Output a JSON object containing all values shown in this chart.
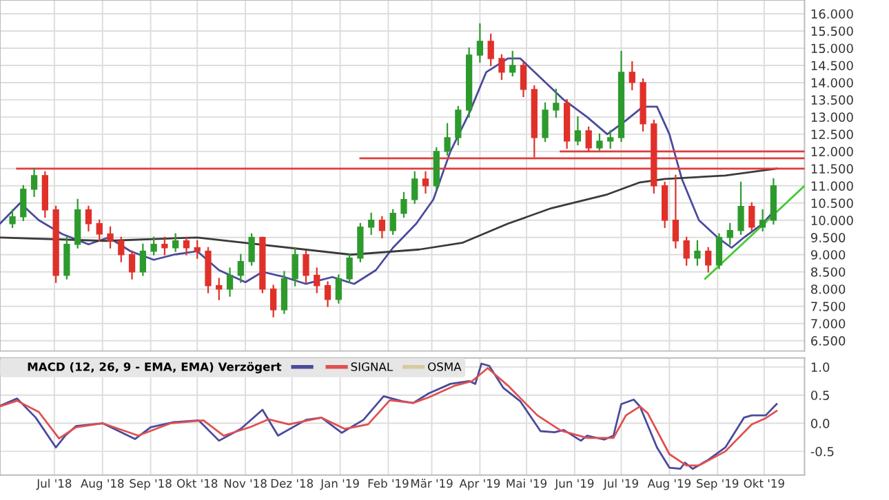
{
  "chart_data": [
    {
      "type": "candlestick",
      "tick_labels": "y",
      "grid": true,
      "xlim": [
        "2018-05-27",
        "2019-10-27"
      ],
      "xticks": [
        {
          "value": "2018-07-01",
          "label": null
        },
        {
          "value": "2018-08-01",
          "label": null
        },
        {
          "value": "2018-09-01",
          "label": null
        },
        {
          "value": "2018-10-01",
          "label": null
        },
        {
          "value": "2018-11-01",
          "label": null
        },
        {
          "value": "2018-12-01",
          "label": null
        },
        {
          "value": "2019-01-01",
          "label": null
        },
        {
          "value": "2019-02-01",
          "label": null
        },
        {
          "value": "2019-03-01",
          "label": null
        },
        {
          "value": "2019-04-01",
          "label": null
        },
        {
          "value": "2019-05-01",
          "label": null
        },
        {
          "value": "2019-06-01",
          "label": null
        },
        {
          "value": "2019-07-01",
          "label": null
        },
        {
          "value": "2019-08-01",
          "label": null
        },
        {
          "value": "2019-09-01",
          "label": null
        },
        {
          "value": "2019-10-01",
          "label": null
        }
      ],
      "ylim": [
        6.2,
        16.4
      ],
      "yticks": [
        {
          "value": 6.5,
          "label": "6.500"
        },
        {
          "value": 7,
          "label": "7.000"
        },
        {
          "value": 7.5,
          "label": "7.500"
        },
        {
          "value": 8,
          "label": "8.000"
        },
        {
          "value": 8.5,
          "label": "8.500"
        },
        {
          "value": 9,
          "label": "9.000"
        },
        {
          "value": 9.5,
          "label": "9.500"
        },
        {
          "value": 10,
          "label": "10.000"
        },
        {
          "value": 10.5,
          "label": "10.500"
        },
        {
          "value": 11,
          "label": "11.000"
        },
        {
          "value": 11.5,
          "label": "11.500"
        },
        {
          "value": 12,
          "label": "12.000"
        },
        {
          "value": 12.5,
          "label": "12.500"
        },
        {
          "value": 13,
          "label": "13.000"
        },
        {
          "value": 13.5,
          "label": "13.500"
        },
        {
          "value": 14,
          "label": "14.000"
        },
        {
          "value": 14.5,
          "label": "14.500"
        },
        {
          "value": 15,
          "label": "15.000"
        },
        {
          "value": 15.5,
          "label": "15.500"
        },
        {
          "value": 16,
          "label": "16.000"
        }
      ],
      "x": [
        "2018-06-04",
        "2018-06-11",
        "2018-06-18",
        "2018-06-25",
        "2018-07-02",
        "2018-07-09",
        "2018-07-16",
        "2018-07-23",
        "2018-07-30",
        "2018-08-06",
        "2018-08-13",
        "2018-08-20",
        "2018-08-27",
        "2018-09-03",
        "2018-09-10",
        "2018-09-17",
        "2018-09-24",
        "2018-10-01",
        "2018-10-08",
        "2018-10-15",
        "2018-10-22",
        "2018-10-29",
        "2018-11-05",
        "2018-11-12",
        "2018-11-19",
        "2018-11-26",
        "2018-12-03",
        "2018-12-10",
        "2018-12-17",
        "2018-12-24",
        "2018-12-31",
        "2019-01-07",
        "2019-01-14",
        "2019-01-21",
        "2019-01-28",
        "2019-02-04",
        "2019-02-11",
        "2019-02-18",
        "2019-02-25",
        "2019-03-04",
        "2019-03-11",
        "2019-03-18",
        "2019-03-25",
        "2019-04-01",
        "2019-04-08",
        "2019-04-15",
        "2019-04-22",
        "2019-04-29",
        "2019-05-06",
        "2019-05-13",
        "2019-05-20",
        "2019-05-27",
        "2019-06-03",
        "2019-06-10",
        "2019-06-17",
        "2019-06-24",
        "2019-07-01",
        "2019-07-08",
        "2019-07-15",
        "2019-07-22",
        "2019-07-29",
        "2019-08-05",
        "2019-08-12",
        "2019-08-19",
        "2019-08-26",
        "2019-09-02",
        "2019-09-09",
        "2019-09-16",
        "2019-09-23",
        "2019-09-30",
        "2019-10-07"
      ],
      "ohlc": [
        [
          9.9,
          10.3,
          9.8,
          10.1
        ],
        [
          10.1,
          11.0,
          10.0,
          10.9
        ],
        [
          10.9,
          11.5,
          10.7,
          11.3
        ],
        [
          11.3,
          11.4,
          10.1,
          10.3
        ],
        [
          10.3,
          10.4,
          8.2,
          8.4
        ],
        [
          8.4,
          9.5,
          8.3,
          9.3
        ],
        [
          9.3,
          10.6,
          9.2,
          10.3
        ],
        [
          10.3,
          10.4,
          9.7,
          9.9
        ],
        [
          9.9,
          10.0,
          9.4,
          9.6
        ],
        [
          9.6,
          9.8,
          9.2,
          9.4
        ],
        [
          9.4,
          9.5,
          8.8,
          9.0
        ],
        [
          9.0,
          9.1,
          8.3,
          8.5
        ],
        [
          8.5,
          9.3,
          8.4,
          9.1
        ],
        [
          9.1,
          9.5,
          9.0,
          9.3
        ],
        [
          9.3,
          9.5,
          9.0,
          9.2
        ],
        [
          9.2,
          9.6,
          9.1,
          9.4
        ],
        [
          9.4,
          9.5,
          9.0,
          9.2
        ],
        [
          9.2,
          9.4,
          8.9,
          9.1
        ],
        [
          9.1,
          9.2,
          7.9,
          8.1
        ],
        [
          8.1,
          8.3,
          7.7,
          8.0
        ],
        [
          8.0,
          8.6,
          7.8,
          8.4
        ],
        [
          8.4,
          9.0,
          8.2,
          8.8
        ],
        [
          8.8,
          9.6,
          8.7,
          9.5
        ],
        [
          9.5,
          9.5,
          7.9,
          8.0
        ],
        [
          8.0,
          8.1,
          7.2,
          7.4
        ],
        [
          7.4,
          8.5,
          7.3,
          8.3
        ],
        [
          8.3,
          9.2,
          8.1,
          9.0
        ],
        [
          9.0,
          9.1,
          8.2,
          8.4
        ],
        [
          8.4,
          8.6,
          7.9,
          8.1
        ],
        [
          8.1,
          8.2,
          7.5,
          7.7
        ],
        [
          7.7,
          8.4,
          7.6,
          8.3
        ],
        [
          8.3,
          9.0,
          8.2,
          8.9
        ],
        [
          8.9,
          9.9,
          8.8,
          9.8
        ],
        [
          9.8,
          10.2,
          9.6,
          10.0
        ],
        [
          10.0,
          10.1,
          9.5,
          9.7
        ],
        [
          9.7,
          10.3,
          9.6,
          10.2
        ],
        [
          10.2,
          10.8,
          10.1,
          10.6
        ],
        [
          10.6,
          11.4,
          10.5,
          11.2
        ],
        [
          11.2,
          11.4,
          10.8,
          11.0
        ],
        [
          11.0,
          12.1,
          10.9,
          12.0
        ],
        [
          12.0,
          12.8,
          11.9,
          12.4
        ],
        [
          12.4,
          13.3,
          12.2,
          13.2
        ],
        [
          13.2,
          15.0,
          13.0,
          14.8
        ],
        [
          14.8,
          15.7,
          14.6,
          15.2
        ],
        [
          15.2,
          15.4,
          14.5,
          14.7
        ],
        [
          14.7,
          14.8,
          14.1,
          14.3
        ],
        [
          14.3,
          14.9,
          14.2,
          14.5
        ],
        [
          14.5,
          14.6,
          13.6,
          13.8
        ],
        [
          13.8,
          13.9,
          11.85,
          12.4
        ],
        [
          12.4,
          13.4,
          12.3,
          13.2
        ],
        [
          13.2,
          13.8,
          13.0,
          13.4
        ],
        [
          13.4,
          13.5,
          12.1,
          12.3
        ],
        [
          12.3,
          13.0,
          12.2,
          12.6
        ],
        [
          12.6,
          12.7,
          12.0,
          12.1
        ],
        [
          12.1,
          12.5,
          12.05,
          12.3
        ],
        [
          12.3,
          12.6,
          12.1,
          12.4
        ],
        [
          12.4,
          14.9,
          12.3,
          14.3
        ],
        [
          14.3,
          14.6,
          13.8,
          14.0
        ],
        [
          14.0,
          14.1,
          12.6,
          12.8
        ],
        [
          12.8,
          12.9,
          10.8,
          11.0
        ],
        [
          11.0,
          11.1,
          9.8,
          10.0
        ],
        [
          10.0,
          11.3,
          9.2,
          9.4
        ],
        [
          9.4,
          9.5,
          8.7,
          8.9
        ],
        [
          8.9,
          9.4,
          8.7,
          9.1
        ],
        [
          9.1,
          9.2,
          8.5,
          8.7
        ],
        [
          8.7,
          9.6,
          8.6,
          9.5
        ],
        [
          9.5,
          9.9,
          9.3,
          9.7
        ],
        [
          9.7,
          11.1,
          9.6,
          10.4
        ],
        [
          10.4,
          10.5,
          9.7,
          9.8
        ],
        [
          9.8,
          10.3,
          9.7,
          10.0
        ],
        [
          10.0,
          11.2,
          9.9,
          11.0
        ]
      ],
      "series": [
        {
          "type": "line",
          "color": "#4a4a9c",
          "x": [
            "2018-05-27",
            "2018-06-09",
            "2018-06-21",
            "2018-07-06",
            "2018-07-23",
            "2018-08-05",
            "2018-08-19",
            "2018-09-03",
            "2018-09-16",
            "2018-10-01",
            "2018-10-15",
            "2018-11-01",
            "2018-11-12",
            "2018-11-26",
            "2018-12-10",
            "2018-12-27",
            "2019-01-10",
            "2019-01-24",
            "2019-02-04",
            "2019-02-19",
            "2019-03-02",
            "2019-03-13",
            "2019-03-25",
            "2019-04-05",
            "2019-04-19",
            "2019-04-27",
            "2019-05-11",
            "2019-05-25",
            "2019-06-09",
            "2019-06-22",
            "2019-07-04",
            "2019-07-15",
            "2019-07-24",
            "2019-08-01",
            "2019-08-09",
            "2019-08-20",
            "2019-09-01",
            "2019-09-10",
            "2019-09-18",
            "2019-09-30",
            "2019-10-08"
          ],
          "values": [
            9.9,
            10.5,
            10.0,
            9.6,
            9.3,
            9.5,
            9.1,
            8.85,
            9.0,
            9.1,
            8.55,
            8.2,
            8.5,
            8.35,
            8.15,
            8.35,
            8.15,
            8.55,
            9.2,
            9.9,
            10.6,
            12.0,
            13.1,
            14.3,
            14.7,
            14.7,
            14.1,
            13.5,
            13.0,
            12.5,
            12.9,
            13.3,
            13.3,
            12.5,
            11.2,
            10.0,
            9.5,
            9.2,
            9.5,
            9.9,
            10.3
          ]
        },
        {
          "type": "line",
          "color": "#3a3a3a",
          "x": [
            "2018-05-27",
            "2018-08-03",
            "2018-10-01",
            "2019-01-08",
            "2019-02-21",
            "2019-03-21",
            "2019-04-19",
            "2019-05-17",
            "2019-06-22",
            "2019-07-13",
            "2019-07-29",
            "2019-09-06",
            "2019-10-09"
          ],
          "values": [
            9.5,
            9.4,
            9.5,
            9.0,
            9.15,
            9.35,
            9.9,
            10.35,
            10.75,
            11.1,
            11.2,
            11.3,
            11.5
          ]
        },
        {
          "type": "line",
          "color": "#e03c3c",
          "x": [
            "2018-06-07",
            "2019-10-27"
          ],
          "values": [
            11.5,
            11.5
          ]
        },
        {
          "type": "line",
          "color": "#e03c3c",
          "x": [
            "2019-01-14",
            "2019-10-27"
          ],
          "values": [
            11.8,
            11.8
          ]
        },
        {
          "type": "line",
          "color": "#e03c3c",
          "x": [
            "2019-05-23",
            "2019-10-27"
          ],
          "values": [
            12.0,
            12.0
          ]
        },
        {
          "type": "line",
          "color": "#44cc33",
          "x": [
            "2019-08-24",
            "2019-10-27"
          ],
          "values": [
            8.3,
            11.0
          ]
        }
      ]
    },
    {
      "type": "line",
      "grid": true,
      "legend": "top left",
      "legend_title": "MACD (12, 26, 9 - EMA, EMA) Verzögert",
      "xlim": [
        "2018-05-27",
        "2019-10-27"
      ],
      "xticks": [
        {
          "value": "2018-07-01",
          "label": "Jul '18"
        },
        {
          "value": "2018-08-01",
          "label": "Aug '18"
        },
        {
          "value": "2018-09-01",
          "label": "Sep '18"
        },
        {
          "value": "2018-10-01",
          "label": "Okt '18"
        },
        {
          "value": "2018-11-01",
          "label": "Nov '18"
        },
        {
          "value": "2018-12-01",
          "label": "Dez '18"
        },
        {
          "value": "2019-01-01",
          "label": "Jan '19"
        },
        {
          "value": "2019-02-01",
          "label": "Feb '19"
        },
        {
          "value": "2019-03-01",
          "label": "Mär '19"
        },
        {
          "value": "2019-04-01",
          "label": "Apr '19"
        },
        {
          "value": "2019-05-01",
          "label": "Mai '19"
        },
        {
          "value": "2019-06-01",
          "label": "Jun '19"
        },
        {
          "value": "2019-07-01",
          "label": "Jul '19"
        },
        {
          "value": "2019-08-01",
          "label": "Aug '19"
        },
        {
          "value": "2019-09-01",
          "label": "Sep '19"
        },
        {
          "value": "2019-10-01",
          "label": "Okt '19"
        }
      ],
      "ylim": [
        -0.92,
        1.16
      ],
      "yticks": [
        {
          "value": -0.5,
          "label": "-0.5"
        },
        {
          "value": 0,
          "label": "0.0"
        },
        {
          "value": 0.5,
          "label": "0.5"
        },
        {
          "value": 1,
          "label": "1.0"
        }
      ],
      "series": [
        {
          "color": "#4a4a9c",
          "x": [
            "2018-05-27",
            "2018-06-07",
            "2018-06-19",
            "2018-07-02",
            "2018-07-08",
            "2018-07-15",
            "2018-08-01",
            "2018-08-22",
            "2018-09-01",
            "2018-09-16",
            "2018-10-02",
            "2018-10-15",
            "2018-10-29",
            "2018-11-12",
            "2018-11-22",
            "2018-12-10",
            "2018-12-20",
            "2019-01-02",
            "2019-01-16",
            "2019-01-29",
            "2019-02-10",
            "2019-02-17",
            "2019-02-27",
            "2019-03-13",
            "2019-03-25",
            "2019-03-29",
            "2019-04-02",
            "2019-04-07",
            "2019-04-16",
            "2019-04-27",
            "2019-05-10",
            "2019-05-19",
            "2019-05-25",
            "2019-06-05",
            "2019-06-09",
            "2019-06-20",
            "2019-06-26",
            "2019-07-01",
            "2019-07-09",
            "2019-07-13",
            "2019-07-24",
            "2019-08-01",
            "2019-08-08",
            "2019-08-11",
            "2019-08-16",
            "2019-08-26",
            "2019-09-06",
            "2019-09-18",
            "2019-09-23",
            "2019-10-02",
            "2019-10-09"
          ],
          "values": [
            0.31,
            0.44,
            0.1,
            -0.43,
            -0.22,
            -0.05,
            0.0,
            -0.28,
            -0.07,
            0.02,
            0.05,
            -0.31,
            -0.1,
            0.24,
            -0.22,
            0.06,
            0.1,
            -0.17,
            0.06,
            0.48,
            0.39,
            0.36,
            0.53,
            0.7,
            0.75,
            0.7,
            1.06,
            1.02,
            0.63,
            0.39,
            -0.14,
            -0.16,
            -0.12,
            -0.31,
            -0.22,
            -0.29,
            -0.22,
            0.34,
            0.42,
            0.3,
            -0.43,
            -0.79,
            -0.81,
            -0.7,
            -0.81,
            -0.65,
            -0.43,
            0.1,
            0.14,
            0.14,
            0.34
          ]
        },
        {
          "name": "SIGNAL",
          "color": "#e05050",
          "x": [
            "2018-05-27",
            "2018-06-07",
            "2018-06-21",
            "2018-07-04",
            "2018-07-15",
            "2018-08-01",
            "2018-08-24",
            "2018-09-14",
            "2018-10-05",
            "2018-10-18",
            "2018-11-04",
            "2018-11-16",
            "2018-11-29",
            "2018-12-20",
            "2019-01-04",
            "2019-01-19",
            "2019-02-02",
            "2019-02-17",
            "2019-02-27",
            "2019-03-16",
            "2019-03-27",
            "2019-04-06",
            "2019-04-19",
            "2019-05-08",
            "2019-05-23",
            "2019-06-09",
            "2019-06-26",
            "2019-07-04",
            "2019-07-13",
            "2019-07-18",
            "2019-08-01",
            "2019-08-12",
            "2019-08-20",
            "2019-09-06",
            "2019-09-23",
            "2019-10-02",
            "2019-10-09"
          ],
          "values": [
            0.3,
            0.4,
            0.2,
            -0.27,
            -0.07,
            0.0,
            -0.22,
            0.0,
            0.05,
            -0.22,
            -0.07,
            0.07,
            -0.02,
            0.1,
            -0.1,
            -0.02,
            0.41,
            0.36,
            0.46,
            0.67,
            0.75,
            0.98,
            0.67,
            0.14,
            -0.13,
            -0.26,
            -0.26,
            0.14,
            0.3,
            0.18,
            -0.55,
            -0.75,
            -0.75,
            -0.5,
            -0.02,
            0.09,
            0.22
          ]
        },
        {
          "name": "OSMA",
          "color": "#d8c9a0"
        }
      ]
    }
  ]
}
